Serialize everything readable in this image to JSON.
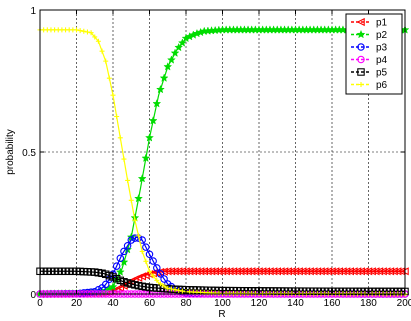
{
  "chart_data": {
    "type": "line",
    "title": "",
    "xlabel": "R",
    "ylabel": "probability",
    "xlim": [
      0,
      200
    ],
    "ylim": [
      0,
      1
    ],
    "x_ticks": [
      0,
      20,
      40,
      60,
      80,
      100,
      120,
      140,
      160,
      180,
      200
    ],
    "y_ticks": [
      0,
      0.5,
      1
    ],
    "x_tick_labels": [
      "0",
      "20",
      "40",
      "60",
      "80",
      "100",
      "120",
      "140",
      "160",
      "180",
      "200"
    ],
    "y_tick_labels": [
      "0",
      "0.5",
      "1"
    ],
    "grid": true,
    "legend_position": "top-right",
    "series": [
      {
        "name": "p1",
        "color": "#ff0000",
        "marker": "triangle-left",
        "points": [
          [
            0,
            0
          ],
          [
            30,
            0.002
          ],
          [
            40,
            0.01
          ],
          [
            45,
            0.025
          ],
          [
            50,
            0.045
          ],
          [
            55,
            0.06
          ],
          [
            60,
            0.07
          ],
          [
            65,
            0.077
          ],
          [
            70,
            0.08
          ],
          [
            80,
            0.08
          ],
          [
            100,
            0.08
          ],
          [
            200,
            0.08
          ]
        ]
      },
      {
        "name": "p2",
        "color": "#00dd00",
        "marker": "star",
        "points": [
          [
            0,
            0
          ],
          [
            30,
            0.002
          ],
          [
            35,
            0.008
          ],
          [
            40,
            0.025
          ],
          [
            45,
            0.09
          ],
          [
            50,
            0.2
          ],
          [
            55,
            0.37
          ],
          [
            60,
            0.55
          ],
          [
            65,
            0.7
          ],
          [
            70,
            0.8
          ],
          [
            75,
            0.86
          ],
          [
            80,
            0.9
          ],
          [
            85,
            0.915
          ],
          [
            90,
            0.925
          ],
          [
            100,
            0.93
          ],
          [
            120,
            0.93
          ],
          [
            200,
            0.93
          ]
        ]
      },
      {
        "name": "p3",
        "color": "#0000ff",
        "marker": "circle",
        "points": [
          [
            0,
            0
          ],
          [
            20,
            0.001
          ],
          [
            30,
            0.008
          ],
          [
            35,
            0.025
          ],
          [
            40,
            0.07
          ],
          [
            45,
            0.14
          ],
          [
            50,
            0.19
          ],
          [
            53,
            0.2
          ],
          [
            56,
            0.19
          ],
          [
            60,
            0.14
          ],
          [
            65,
            0.08
          ],
          [
            70,
            0.035
          ],
          [
            75,
            0.012
          ],
          [
            80,
            0.004
          ],
          [
            90,
            0.001
          ],
          [
            200,
            0
          ]
        ]
      },
      {
        "name": "p4",
        "color": "#ff00ff",
        "marker": "circle",
        "points": [
          [
            0,
            0
          ],
          [
            50,
            0
          ],
          [
            100,
            0
          ],
          [
            150,
            0
          ],
          [
            200,
            0
          ]
        ]
      },
      {
        "name": "p5",
        "color": "#000000",
        "marker": "square",
        "points": [
          [
            0,
            0.08
          ],
          [
            20,
            0.08
          ],
          [
            30,
            0.077
          ],
          [
            35,
            0.072
          ],
          [
            40,
            0.06
          ],
          [
            45,
            0.045
          ],
          [
            50,
            0.035
          ],
          [
            55,
            0.028
          ],
          [
            60,
            0.023
          ],
          [
            70,
            0.018
          ],
          [
            80,
            0.015
          ],
          [
            100,
            0.012
          ],
          [
            140,
            0.01
          ],
          [
            200,
            0.009
          ]
        ]
      },
      {
        "name": "p6",
        "color": "#ffff00",
        "marker": "plus",
        "points": [
          [
            0,
            0.93
          ],
          [
            20,
            0.93
          ],
          [
            28,
            0.92
          ],
          [
            32,
            0.89
          ],
          [
            36,
            0.82
          ],
          [
            40,
            0.7
          ],
          [
            44,
            0.55
          ],
          [
            48,
            0.4
          ],
          [
            52,
            0.26
          ],
          [
            56,
            0.15
          ],
          [
            60,
            0.08
          ],
          [
            65,
            0.04
          ],
          [
            70,
            0.02
          ],
          [
            80,
            0.008
          ],
          [
            100,
            0.002
          ],
          [
            200,
            0
          ]
        ]
      }
    ]
  }
}
